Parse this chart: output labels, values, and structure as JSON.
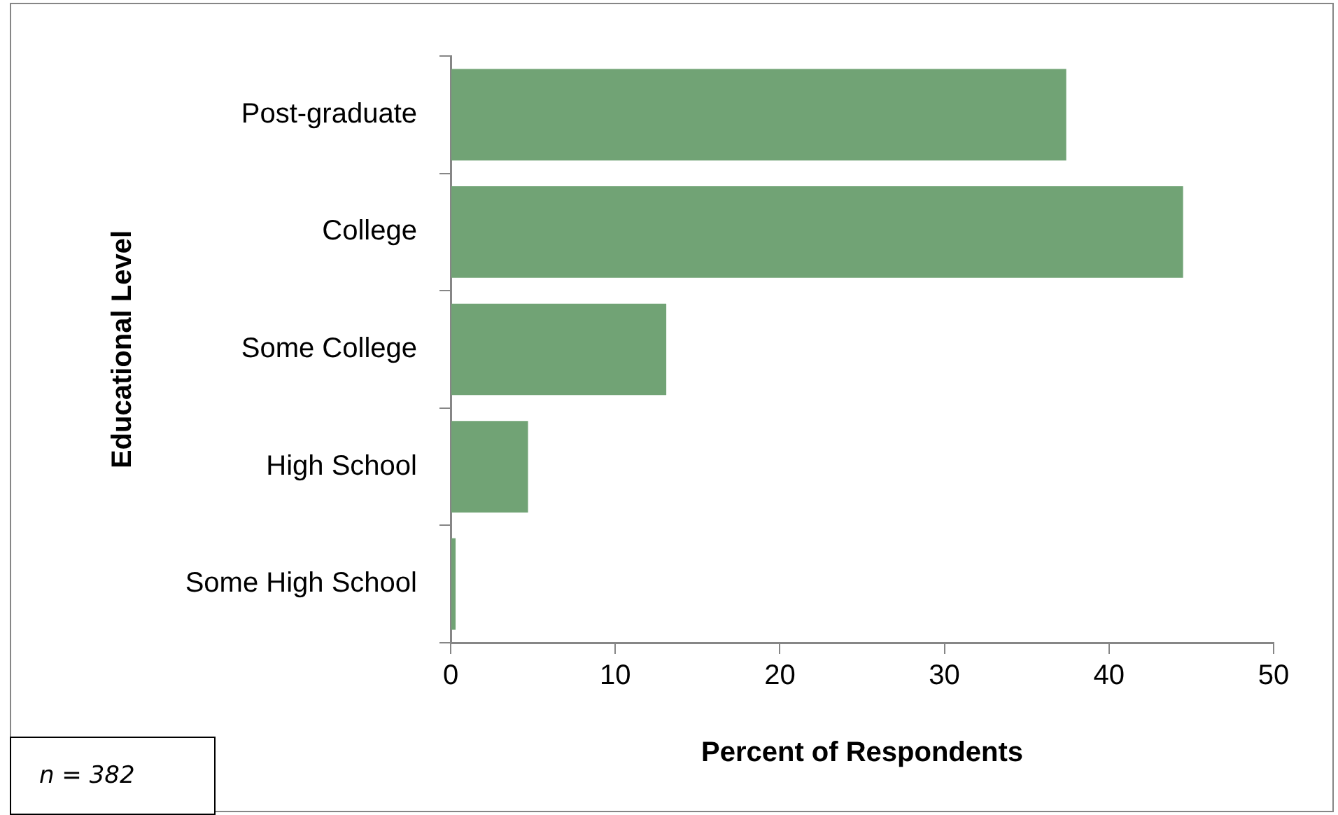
{
  "chart_data": {
    "type": "bar",
    "orientation": "horizontal",
    "xlabel": "Percent of Respondents",
    "ylabel": "Educational Level",
    "categories": [
      "Post-graduate",
      "College",
      "Some College",
      "High School",
      "Some High School"
    ],
    "values": [
      37.4,
      44.5,
      13.1,
      4.7,
      0.3
    ],
    "color": "#71a375",
    "xlim": [
      0,
      50
    ],
    "xticks": [
      0,
      10,
      20,
      30,
      40,
      50
    ],
    "legend": false,
    "annotations": [
      "n = 382"
    ]
  }
}
